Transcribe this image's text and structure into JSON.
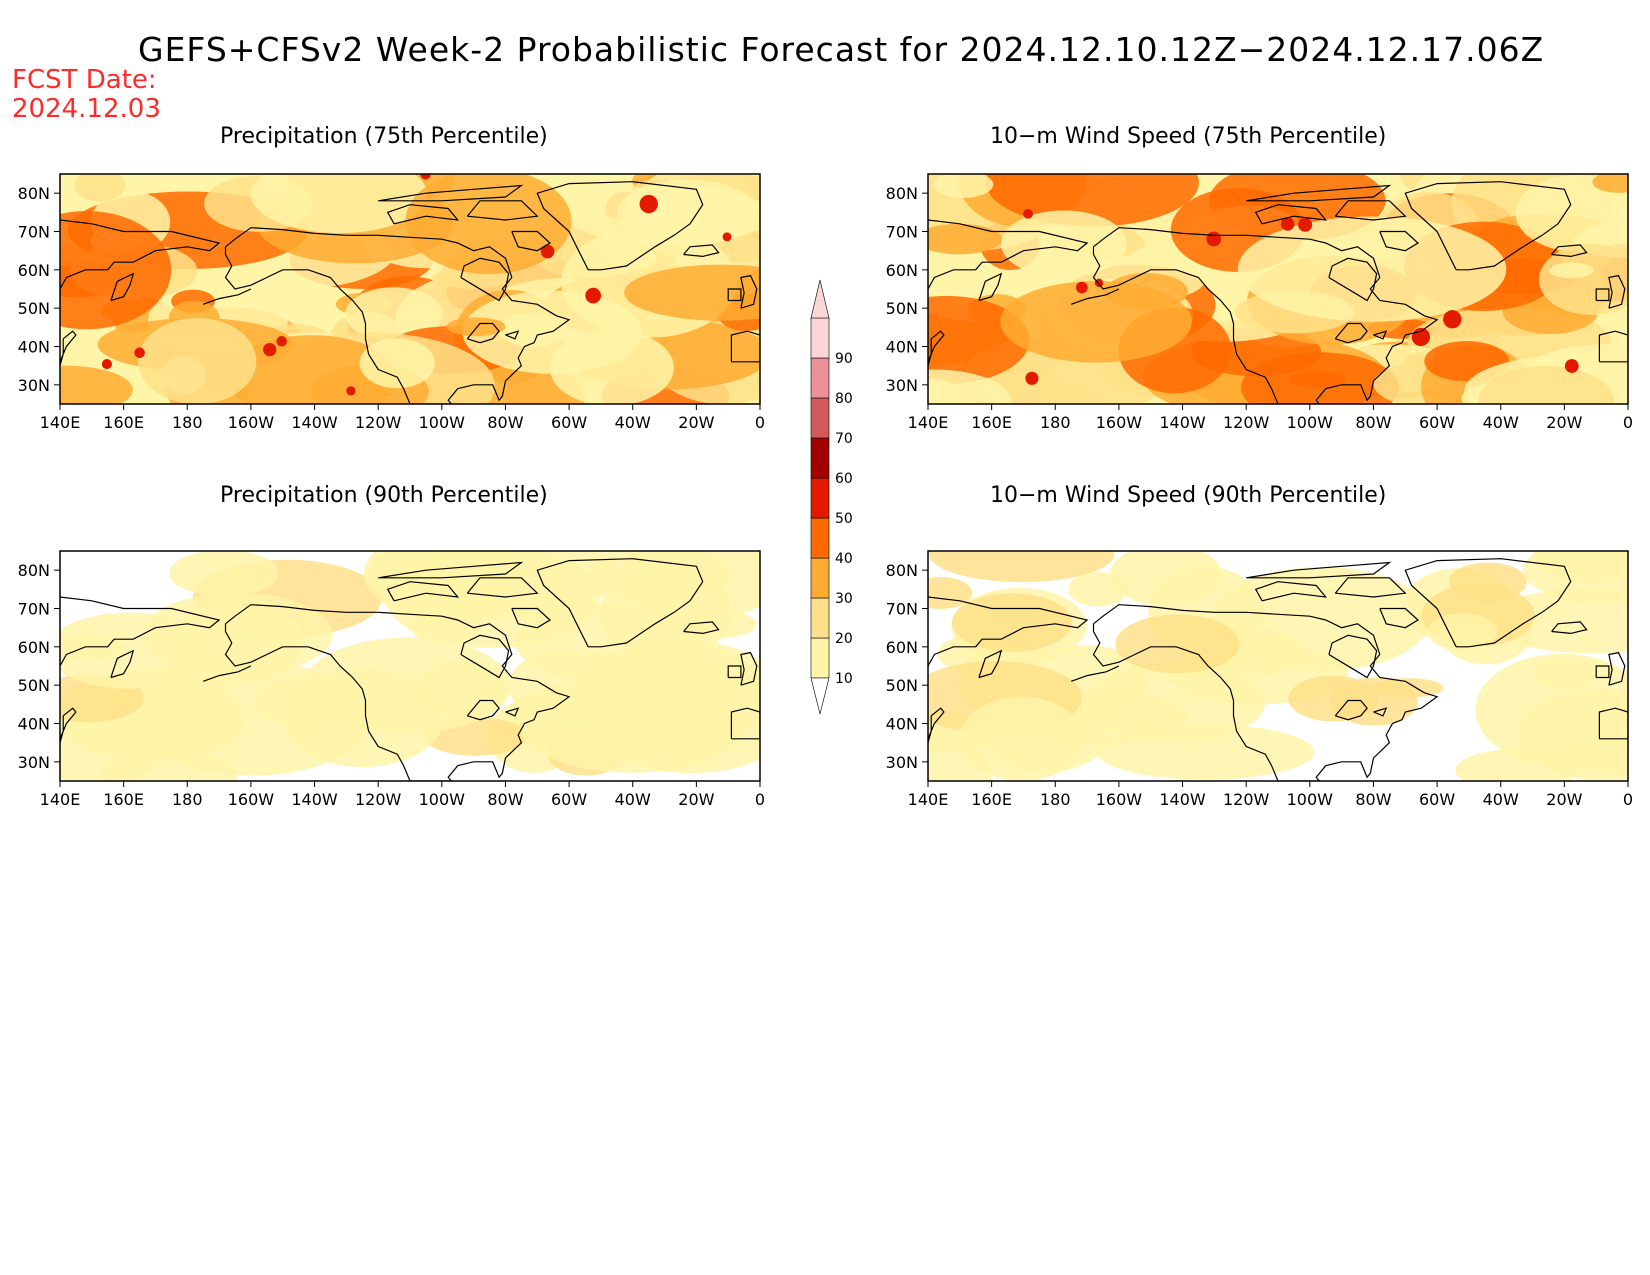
{
  "title": "GEFS+CFSv2 Week-2 Probabilistic Forecast for 2024.12.10.12Z−2024.12.17.06Z",
  "fcst_date_label": "FCST Date:",
  "fcst_date_value": "2024.12.03",
  "panels": [
    {
      "title": "Precipitation (75th Percentile)",
      "intensity": 0.62
    },
    {
      "title": "10−m Wind Speed (75th Percentile)",
      "intensity": 0.66
    },
    {
      "title": "Precipitation (90th Percentile)",
      "intensity": 0.22
    },
    {
      "title": "10−m Wind Speed (90th Percentile)",
      "intensity": 0.24
    }
  ],
  "axes": {
    "lon_labels": [
      "140E",
      "160E",
      "180",
      "160W",
      "140W",
      "120W",
      "100W",
      "80W",
      "60W",
      "40W",
      "20W",
      "0"
    ],
    "lat_labels": [
      "80N",
      "70N",
      "60N",
      "50N",
      "40N",
      "30N"
    ],
    "lon_range": [
      140,
      360
    ],
    "lat_range": [
      25,
      85
    ]
  },
  "colorbar": {
    "levels": [
      "10",
      "20",
      "30",
      "40",
      "50",
      "60",
      "70",
      "80",
      "90"
    ],
    "colors": [
      "#fff5a8",
      "#ffe08a",
      "#ffab33",
      "#ff6a00",
      "#e31a00",
      "#a30000",
      "#d45a5a",
      "#eb9098",
      "#fcd5d8"
    ]
  }
}
